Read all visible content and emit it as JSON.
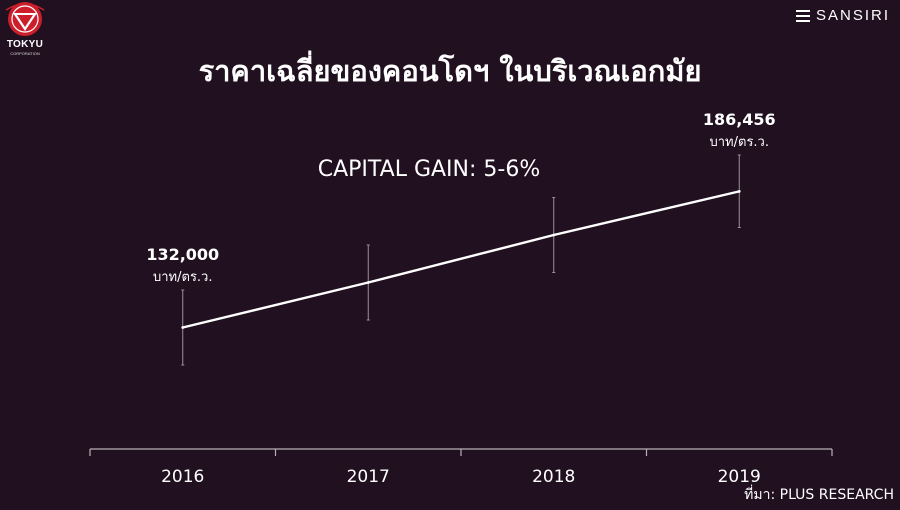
{
  "title": "ราคาเฉลี่ยของคอนโดฯ ในบริเวณเอกมัย",
  "brand": {
    "left_logo_text": "TOKYU",
    "left_logo_subtext": "CORPORATION",
    "right_logo_text": "SANSIRI",
    "left_logo_icon": "tokyu-emblem-icon",
    "right_logo_icon": "sansiri-stripes-icon",
    "accent_color": "#cc1f2b"
  },
  "source": "ที่มา: PLUS RESEARCH",
  "chart_data": {
    "type": "line",
    "annotation": "CAPITAL GAIN: 5-6%",
    "categories": [
      "2016",
      "2017",
      "2018",
      "2019"
    ],
    "series": [
      {
        "values": [
          132000,
          150000,
          169000,
          186456
        ],
        "error_low": [
          117000,
          135000,
          154000,
          172000
        ],
        "error_high": [
          147000,
          165000,
          184000,
          201000
        ]
      }
    ],
    "data_labels": [
      {
        "index": 0,
        "value": "132,000",
        "unit": "บาท/ตร.ว."
      },
      {
        "index": 3,
        "value": "186,456",
        "unit": "บาท/ตร.ว."
      }
    ],
    "ylim": [
      95000,
      215000
    ],
    "grid": false,
    "line_color": "#ffffff",
    "background_color": "#211020"
  }
}
